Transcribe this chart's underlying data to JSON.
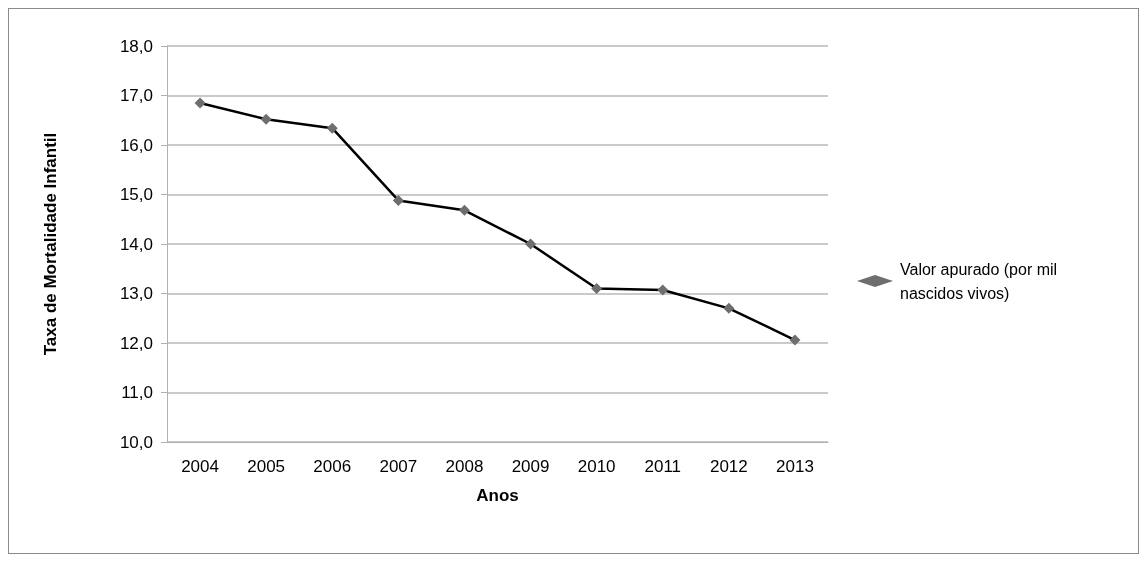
{
  "chart_data": {
    "type": "line",
    "xlabel": "Anos",
    "ylabel": "Taxa de Mortalidade Infantil",
    "categories": [
      "2004",
      "2005",
      "2006",
      "2007",
      "2008",
      "2009",
      "2010",
      "2011",
      "2012",
      "2013"
    ],
    "series": [
      {
        "name": "Valor apurado (por mil nascidos vivos)",
        "color": "#000000",
        "values": [
          16.85,
          16.52,
          16.34,
          14.88,
          14.68,
          14.0,
          13.1,
          13.07,
          12.7,
          12.06
        ]
      }
    ],
    "ylim": [
      10,
      18
    ],
    "yticks": [
      {
        "value": 10,
        "label": "10,0"
      },
      {
        "value": 11,
        "label": "11,0"
      },
      {
        "value": 12,
        "label": "12,0"
      },
      {
        "value": 13,
        "label": "13,0"
      },
      {
        "value": 14,
        "label": "14,0"
      },
      {
        "value": 15,
        "label": "15,0"
      },
      {
        "value": 16,
        "label": "16,0"
      },
      {
        "value": 17,
        "label": "17,0"
      },
      {
        "value": 18,
        "label": "18,0"
      }
    ],
    "grid": "y",
    "legend": "right",
    "marker": "diamond",
    "line_style": "solid"
  }
}
